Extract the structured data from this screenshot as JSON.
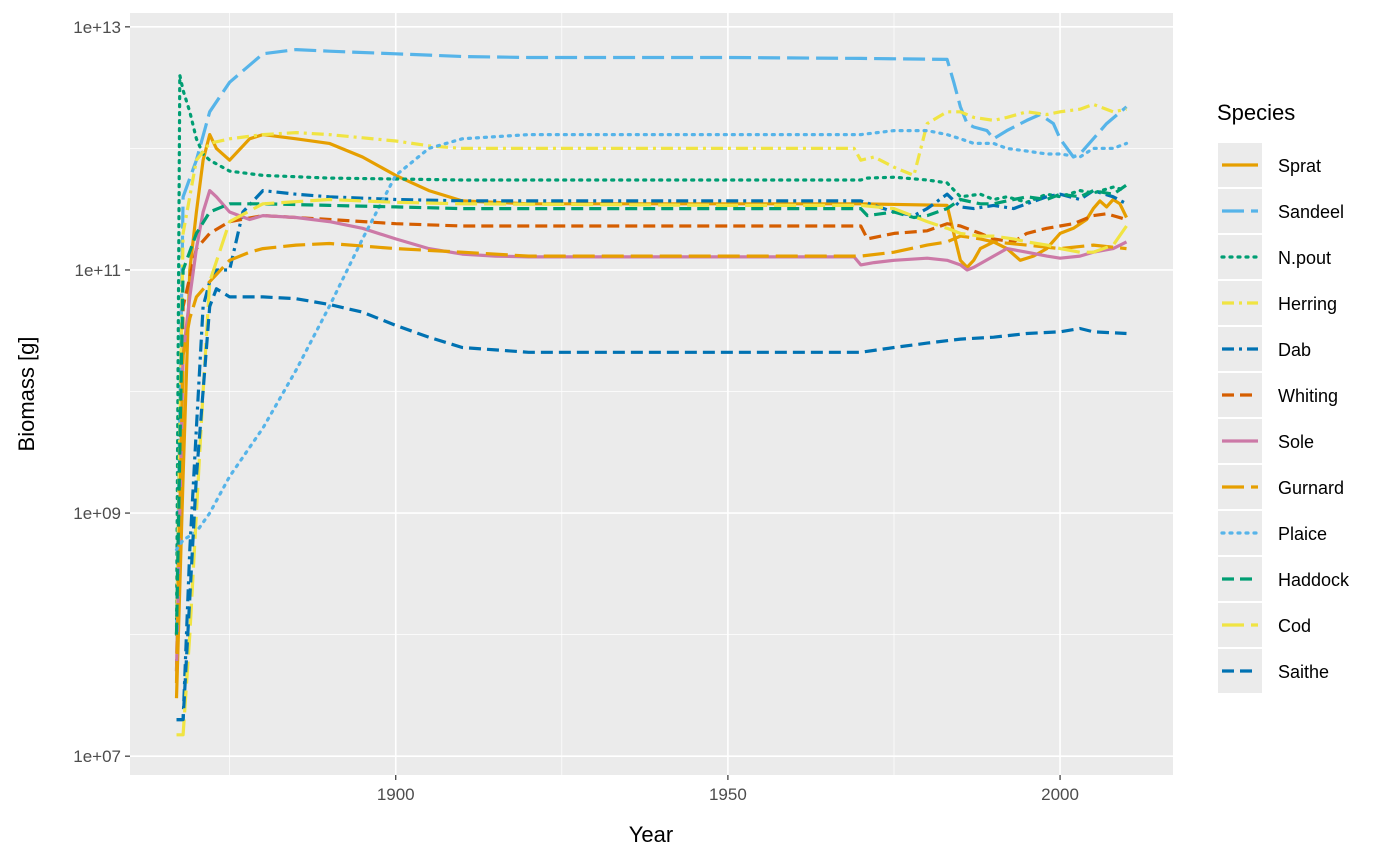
{
  "chart_data": {
    "type": "line",
    "xlabel": "Year",
    "ylabel": "Biomass [g]",
    "y_scale": "log10",
    "xlim": [
      1860,
      2017
    ],
    "ylim": [
      7000000.0,
      13000000000000.0
    ],
    "x_ticks": [
      1900,
      1950,
      2000
    ],
    "x_tick_labels": [
      "1900",
      "1950",
      "2000"
    ],
    "y_ticks": [
      10000000.0,
      1000000000.0,
      100000000000.0,
      10000000000000.0
    ],
    "y_tick_labels": [
      "1e+07",
      "1e+09",
      "1e+11",
      "1e+13"
    ],
    "grid": true,
    "legend": {
      "title": "Species",
      "position": "right"
    },
    "series": [
      {
        "name": "Sprat",
        "color": "#E69F00",
        "dash": "solid",
        "x": [
          1867,
          1868,
          1869,
          1870,
          1871,
          1872,
          1873,
          1875,
          1878,
          1880,
          1885,
          1890,
          1895,
          1900,
          1905,
          1910,
          1920,
          1930,
          1950,
          1970,
          1983,
          1984,
          1985,
          1986,
          1987,
          1988,
          1990,
          1992,
          1994,
          1996,
          1998,
          2000,
          2002,
          2004,
          2005,
          2006,
          2007,
          2008,
          2009,
          2010
        ],
        "y": [
          30000000.0,
          2000000000.0,
          100000000000.0,
          300000000000.0,
          800000000000.0,
          1300000000000.0,
          1000000000000.0,
          800000000000.0,
          1200000000000.0,
          1300000000000.0,
          1200000000000.0,
          1100000000000.0,
          850000000000.0,
          600000000000.0,
          450000000000.0,
          370000000000.0,
          350000000000.0,
          350000000000.0,
          350000000000.0,
          350000000000.0,
          340000000000.0,
          200000000000.0,
          120000000000.0,
          105000000000.0,
          120000000000.0,
          150000000000.0,
          170000000000.0,
          150000000000.0,
          120000000000.0,
          130000000000.0,
          150000000000.0,
          200000000000.0,
          220000000000.0,
          260000000000.0,
          320000000000.0,
          370000000000.0,
          330000000000.0,
          380000000000.0,
          350000000000.0,
          270000000000.0
        ]
      },
      {
        "name": "Sandeel",
        "color": "#56B4E9",
        "dash": "longdash",
        "x": [
          1867,
          1868,
          1870,
          1872,
          1875,
          1880,
          1885,
          1890,
          1900,
          1910,
          1920,
          1950,
          1970,
          1983,
          1984,
          1985,
          1986,
          1987,
          1989,
          1990,
          1992,
          1995,
          1997,
          1999,
          2000,
          2002,
          2003,
          2005,
          2007,
          2010
        ],
        "y": [
          100000000.0,
          400000000000.0,
          800000000000.0,
          2000000000000.0,
          3500000000000.0,
          6000000000000.0,
          6500000000000.0,
          6300000000000.0,
          6000000000000.0,
          5700000000000.0,
          5600000000000.0,
          5600000000000.0,
          5500000000000.0,
          5400000000000.0,
          3500000000000.0,
          2200000000000.0,
          1600000000000.0,
          1500000000000.0,
          1400000000000.0,
          1200000000000.0,
          1400000000000.0,
          1700000000000.0,
          1900000000000.0,
          1600000000000.0,
          1200000000000.0,
          850000000000.0,
          900000000000.0,
          1200000000000.0,
          1600000000000.0,
          2200000000000.0
        ]
      },
      {
        "name": "N.pout",
        "color": "#009E73",
        "dash": "dotted",
        "x": [
          1867,
          1867.5,
          1868,
          1869,
          1870,
          1871,
          1872,
          1875,
          1880,
          1890,
          1900,
          1910,
          1950,
          1970,
          1971,
          1975,
          1980,
          1983,
          1985,
          1988,
          1990,
          1992,
          1995,
          1998,
          2000,
          2003,
          2005,
          2008,
          2010
        ],
        "y": [
          100000000.0,
          4000000000000.0,
          3000000000000.0,
          2000000000000.0,
          1200000000000.0,
          900000000000.0,
          800000000000.0,
          650000000000.0,
          600000000000.0,
          570000000000.0,
          560000000000.0,
          550000000000.0,
          550000000000.0,
          550000000000.0,
          570000000000.0,
          580000000000.0,
          550000000000.0,
          520000000000.0,
          400000000000.0,
          420000000000.0,
          380000000000.0,
          400000000000.0,
          360000000000.0,
          420000000000.0,
          400000000000.0,
          450000000000.0,
          430000000000.0,
          480000000000.0,
          450000000000.0
        ]
      },
      {
        "name": "Herring",
        "color": "#F0E442",
        "dash": "dashdot",
        "x": [
          1867,
          1868,
          1870,
          1872,
          1875,
          1880,
          1885,
          1890,
          1900,
          1905,
          1910,
          1950,
          1969,
          1970,
          1972,
          1975,
          1978,
          1980,
          1983,
          1985,
          1987,
          1990,
          1992,
          1995,
          1998,
          2000,
          2003,
          2005,
          2008,
          2010
        ],
        "y": [
          100000000.0,
          200000000000.0,
          800000000000.0,
          1100000000000.0,
          1200000000000.0,
          1300000000000.0,
          1350000000000.0,
          1300000000000.0,
          1150000000000.0,
          1050000000000.0,
          1000000000000.0,
          1000000000000.0,
          1000000000000.0,
          800000000000.0,
          850000000000.0,
          700000000000.0,
          600000000000.0,
          1600000000000.0,
          2000000000000.0,
          2000000000000.0,
          1800000000000.0,
          1700000000000.0,
          1800000000000.0,
          2000000000000.0,
          1900000000000.0,
          2000000000000.0,
          2100000000000.0,
          2300000000000.0,
          2000000000000.0,
          2100000000000.0
        ]
      },
      {
        "name": "Dab",
        "color": "#0072B2",
        "dash": "dashdot",
        "x": [
          1867,
          1868,
          1869,
          1870,
          1871,
          1872,
          1873,
          1875,
          1877,
          1880,
          1885,
          1890,
          1900,
          1910,
          1950,
          1970,
          1975,
          1978,
          1980,
          1983,
          1985,
          1987,
          1990,
          1993,
          1995,
          1998,
          2000,
          2003,
          2005,
          2008,
          2010
        ],
        "y": [
          20000000.0,
          20000000.0,
          500000000.0,
          5000000000.0,
          50000000000.0,
          80000000000.0,
          100000000000.0,
          100000000000.0,
          300000000000.0,
          450000000000.0,
          420000000000.0,
          400000000000.0,
          380000000000.0,
          370000000000.0,
          370000000000.0,
          370000000000.0,
          300000000000.0,
          280000000000.0,
          320000000000.0,
          420000000000.0,
          330000000000.0,
          320000000000.0,
          340000000000.0,
          320000000000.0,
          350000000000.0,
          400000000000.0,
          420000000000.0,
          380000000000.0,
          450000000000.0,
          400000000000.0,
          350000000000.0
        ]
      },
      {
        "name": "Whiting",
        "color": "#D55E00",
        "dash": "dashed",
        "x": [
          1867,
          1868,
          1870,
          1872,
          1875,
          1880,
          1885,
          1890,
          1900,
          1910,
          1950,
          1970,
          1971,
          1975,
          1980,
          1983,
          1985,
          1988,
          1990,
          1993,
          1995,
          1998,
          2000,
          2002,
          2005,
          2007,
          2010
        ],
        "y": [
          50000000.0,
          50000000000.0,
          150000000000.0,
          200000000000.0,
          250000000000.0,
          280000000000.0,
          270000000000.0,
          260000000000.0,
          240000000000.0,
          230000000000.0,
          230000000000.0,
          230000000000.0,
          180000000000.0,
          200000000000.0,
          210000000000.0,
          240000000000.0,
          230000000000.0,
          200000000000.0,
          180000000000.0,
          170000000000.0,
          200000000000.0,
          220000000000.0,
          230000000000.0,
          240000000000.0,
          280000000000.0,
          290000000000.0,
          260000000000.0
        ]
      },
      {
        "name": "Sole",
        "color": "#CC79A7",
        "dash": "solid",
        "x": [
          1867,
          1868,
          1869,
          1870,
          1871,
          1872,
          1873,
          1875,
          1878,
          1880,
          1885,
          1890,
          1895,
          1900,
          1905,
          1910,
          1915,
          1920,
          1950,
          1969,
          1970,
          1972,
          1975,
          1980,
          1983,
          1985,
          1986,
          1987,
          1990,
          1992,
          1995,
          1998,
          2000,
          2003,
          2005,
          2008,
          2010
        ],
        "y": [
          50000000.0,
          20000000000.0,
          60000000000.0,
          150000000000.0,
          300000000000.0,
          450000000000.0,
          400000000000.0,
          300000000000.0,
          260000000000.0,
          280000000000.0,
          270000000000.0,
          250000000000.0,
          220000000000.0,
          180000000000.0,
          150000000000.0,
          135000000000.0,
          130000000000.0,
          128000000000.0,
          128000000000.0,
          128000000000.0,
          110000000000.0,
          115000000000.0,
          120000000000.0,
          125000000000.0,
          120000000000.0,
          110000000000.0,
          100000000000.0,
          105000000000.0,
          130000000000.0,
          150000000000.0,
          140000000000.0,
          130000000000.0,
          125000000000.0,
          130000000000.0,
          140000000000.0,
          150000000000.0,
          170000000000.0
        ]
      },
      {
        "name": "Gurnard",
        "color": "#E69F00",
        "dash": "longdash",
        "x": [
          1867,
          1868,
          1869,
          1870,
          1872,
          1875,
          1878,
          1880,
          1885,
          1890,
          1900,
          1910,
          1920,
          1950,
          1970,
          1975,
          1980,
          1983,
          1985,
          1988,
          1990,
          1995,
          2000,
          2005,
          2010
        ],
        "y": [
          40000000.0,
          20000000000.0,
          40000000000.0,
          60000000000.0,
          80000000000.0,
          120000000000.0,
          140000000000.0,
          150000000000.0,
          160000000000.0,
          165000000000.0,
          150000000000.0,
          140000000000.0,
          130000000000.0,
          130000000000.0,
          130000000000.0,
          140000000000.0,
          160000000000.0,
          170000000000.0,
          190000000000.0,
          180000000000.0,
          170000000000.0,
          160000000000.0,
          150000000000.0,
          160000000000.0,
          150000000000.0
        ]
      },
      {
        "name": "Plaice",
        "color": "#56B4E9",
        "dash": "dotted",
        "x": [
          1867,
          1868,
          1870,
          1872,
          1875,
          1880,
          1885,
          1890,
          1895,
          1900,
          1905,
          1910,
          1920,
          1950,
          1970,
          1975,
          1980,
          1983,
          1985,
          1987,
          1990,
          1992,
          1995,
          1998,
          2000,
          2003,
          2005,
          2008,
          2010
        ],
        "y": [
          500000000.0,
          600000000.0,
          700000000.0,
          1000000000.0,
          2000000000.0,
          5000000000.0,
          15000000000.0,
          50000000000.0,
          180000000000.0,
          600000000000.0,
          1000000000000.0,
          1200000000000.0,
          1300000000000.0,
          1300000000000.0,
          1300000000000.0,
          1400000000000.0,
          1400000000000.0,
          1300000000000.0,
          1200000000000.0,
          1100000000000.0,
          1100000000000.0,
          1000000000000.0,
          950000000000.0,
          900000000000.0,
          900000000000.0,
          850000000000.0,
          1000000000000.0,
          1000000000000.0,
          1100000000000.0
        ]
      },
      {
        "name": "Haddock",
        "color": "#009E73",
        "dash": "dashed",
        "x": [
          1867,
          1868,
          1870,
          1872,
          1875,
          1880,
          1890,
          1900,
          1910,
          1950,
          1970,
          1971,
          1975,
          1978,
          1980,
          1983,
          1985,
          1988,
          1990,
          1993,
          1995,
          1998,
          2000,
          2003,
          2005,
          2008,
          2010
        ],
        "y": [
          100000000.0,
          100000000000.0,
          200000000000.0,
          300000000000.0,
          350000000000.0,
          350000000000.0,
          340000000000.0,
          330000000000.0,
          320000000000.0,
          320000000000.0,
          320000000000.0,
          280000000000.0,
          300000000000.0,
          270000000000.0,
          280000000000.0,
          320000000000.0,
          380000000000.0,
          350000000000.0,
          350000000000.0,
          380000000000.0,
          400000000000.0,
          380000000000.0,
          420000000000.0,
          400000000000.0,
          450000000000.0,
          420000000000.0,
          500000000000.0
        ]
      },
      {
        "name": "Cod",
        "color": "#F0E442",
        "dash": "longdash",
        "x": [
          1867,
          1868,
          1869,
          1870,
          1871,
          1872,
          1875,
          1880,
          1890,
          1900,
          1910,
          1950,
          1970,
          1975,
          1980,
          1983,
          1985,
          1988,
          1990,
          1993,
          1995,
          1998,
          2000,
          2003,
          2005,
          2008,
          2010
        ],
        "y": [
          15000000.0,
          15000000.0,
          100000000.0,
          1000000000.0,
          10000000000.0,
          80000000000.0,
          250000000000.0,
          350000000000.0,
          380000000000.0,
          360000000000.0,
          350000000000.0,
          340000000000.0,
          340000000000.0,
          320000000000.0,
          250000000000.0,
          220000000000.0,
          200000000000.0,
          190000000000.0,
          190000000000.0,
          180000000000.0,
          170000000000.0,
          160000000000.0,
          150000000000.0,
          140000000000.0,
          140000000000.0,
          160000000000.0,
          230000000000.0
        ]
      },
      {
        "name": "Saithe",
        "color": "#0072B2",
        "dash": "dashed",
        "x": [
          1867,
          1868,
          1869,
          1870,
          1872,
          1873,
          1875,
          1878,
          1880,
          1885,
          1890,
          1895,
          1900,
          1905,
          1910,
          1915,
          1920,
          1950,
          1970,
          1975,
          1980,
          1985,
          1990,
          1995,
          2000,
          2003,
          2005,
          2010
        ],
        "y": [
          20000000.0,
          20000000.0,
          200000000.0,
          2000000000.0,
          50000000000.0,
          70000000000.0,
          60000000000.0,
          60000000000.0,
          60000000000.0,
          58000000000.0,
          52000000000.0,
          45000000000.0,
          35000000000.0,
          28000000000.0,
          23000000000.0,
          22000000000.0,
          21000000000.0,
          21000000000.0,
          21000000000.0,
          23000000000.0,
          25000000000.0,
          27000000000.0,
          28000000000.0,
          30000000000.0,
          31000000000.0,
          33000000000.0,
          31000000000.0,
          30000000000.0
        ]
      }
    ]
  }
}
